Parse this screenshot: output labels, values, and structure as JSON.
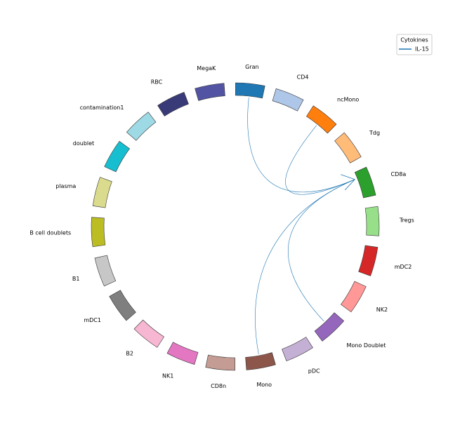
{
  "nodes": [
    {
      "label": "Gran",
      "color": "#1f77b4"
    },
    {
      "label": "CD4",
      "color": "#aec7e8"
    },
    {
      "label": "ncMono",
      "color": "#ff7f0e"
    },
    {
      "label": "Tdg",
      "color": "#ffbb78"
    },
    {
      "label": "CD8a",
      "color": "#2ca02c"
    },
    {
      "label": "Tregs",
      "color": "#98df8a"
    },
    {
      "label": "mDC2",
      "color": "#d62728"
    },
    {
      "label": "NK2",
      "color": "#ff9896"
    },
    {
      "label": "Mono Doublet",
      "color": "#9467bd"
    },
    {
      "label": "pDC",
      "color": "#c5b0d5"
    },
    {
      "label": "Mono",
      "color": "#8c564b"
    },
    {
      "label": "CD8n",
      "color": "#c49c94"
    },
    {
      "label": "NK1",
      "color": "#e377c2"
    },
    {
      "label": "B2",
      "color": "#f7b6d2"
    },
    {
      "label": "mDC1",
      "color": "#7f7f7f"
    },
    {
      "label": "B1",
      "color": "#c7c7c7"
    },
    {
      "label": "B cell doublets",
      "color": "#bcbd22"
    },
    {
      "label": "plasma",
      "color": "#dbdb8d"
    },
    {
      "label": "doublet",
      "color": "#17becf"
    },
    {
      "label": "contamination1",
      "color": "#9edae5"
    },
    {
      "label": "RBC",
      "color": "#393b79"
    },
    {
      "label": "MegaK",
      "color": "#5254a3"
    }
  ],
  "edges": [
    {
      "source": "Gran",
      "target": "CD8a"
    },
    {
      "source": "ncMono",
      "target": "CD8a"
    },
    {
      "source": "Mono Doublet",
      "target": "CD8a"
    },
    {
      "source": "Mono",
      "target": "CD8a"
    }
  ],
  "legend": {
    "title": "Cytokines",
    "entries": [
      {
        "label": "IL-15",
        "color": "#1f77b4"
      }
    ]
  }
}
